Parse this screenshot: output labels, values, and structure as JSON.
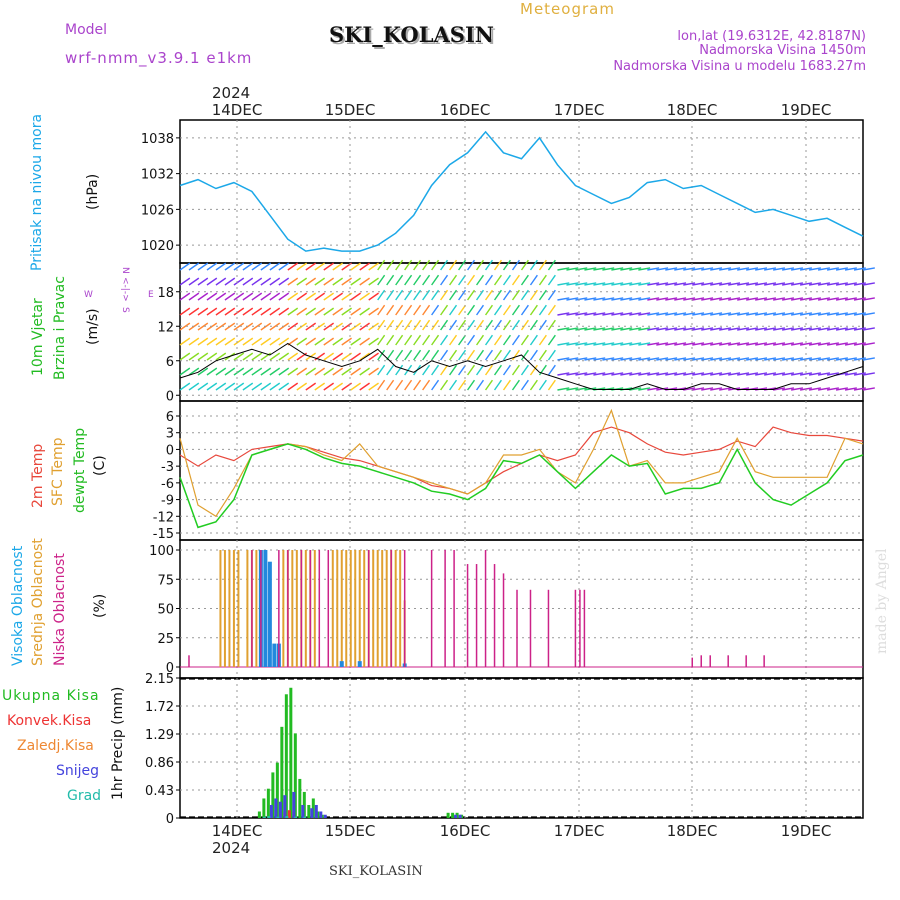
{
  "header": {
    "model_label": "Model",
    "model_name": "wrf-nmm_v3.9.1  e1km",
    "meteogram_label": "Meteogram",
    "station_name": "SKI_KOLASIN",
    "lonlat": "lon,lat (19.6312E, 42.8187N)",
    "elevation": "Nadmorska Visina 1450m",
    "model_elevation": "Nadmorska Visina u modelu 1683.27m",
    "footer_station": "SKI_KOLASIN",
    "watermark": "made by Angel"
  },
  "time_axis": {
    "year": "2024",
    "day_labels": [
      "14DEC",
      "15DEC",
      "16DEC",
      "17DEC",
      "18DEC",
      "19DEC"
    ]
  },
  "colors": {
    "pressure": "#1ca8e8",
    "temp2m": "#e8483c",
    "sfc_temp": "#e0a030",
    "dewpt": "#22cc22",
    "high_cloud": "#2288dd",
    "mid_cloud": "#e0a030",
    "low_cloud": "#cc2288",
    "total_precip": "#22bb22",
    "conv_precip": "#ee3333",
    "frozen_precip": "#ee8833",
    "snow": "#4444dd",
    "hail": "#22bbaa",
    "wind_speed": "#000000"
  },
  "panels": {
    "pressure": {
      "labels": [
        "Pritisak na nivou mora"
      ],
      "unit": "(hPa)",
      "ticks": [
        "1038",
        "1032",
        "1026",
        "1020"
      ]
    },
    "wind": {
      "labels": [
        "10m Vjetar",
        "Brzina i Pravac"
      ],
      "unit": "(m/s)",
      "ticks": [
        "18",
        "12",
        "6",
        "0"
      ],
      "compass": {
        "north": "N",
        "west": "W",
        "east": "E",
        "south": "S"
      }
    },
    "temperature": {
      "labels": [
        "2m Temp",
        "SFC Temp",
        "dewpt Temp"
      ],
      "unit": "(C)",
      "ticks": [
        "6",
        "3",
        "0",
        "-3",
        "-6",
        "-9",
        "-12",
        "-15"
      ]
    },
    "cloud": {
      "labels": [
        "Visoka Oblacnost",
        "Srednja Oblacnost",
        "Niska Oblacnost"
      ],
      "unit": "(%)",
      "ticks": [
        "100",
        "75",
        "50",
        "25",
        "0"
      ]
    },
    "precip": {
      "labels": [
        "Ukupna Kisa",
        "Konvek.Kisa",
        "Zaledj.Kisa",
        "Snijeg",
        "Grad"
      ],
      "unit": "1hr Precip (mm)",
      "ticks": [
        "2.15",
        "1.72",
        "1.29",
        "0.86",
        "0.43",
        "0"
      ]
    }
  },
  "chart_data": [
    {
      "type": "line",
      "title": "Pritisak na nivou mora",
      "ylabel": "(hPa)",
      "x_unit": "hours from 13DEC 12UTC",
      "ylim": [
        1017,
        1041
      ],
      "series": [
        {
          "name": "Pritisak na nivou mora",
          "x": [
            0,
            4,
            8,
            12,
            16,
            20,
            24,
            28,
            32,
            36,
            40,
            44,
            48,
            52,
            56,
            60,
            64,
            68,
            72,
            76,
            80,
            84,
            88,
            92,
            96,
            100,
            104,
            108,
            112,
            116,
            120,
            124,
            128,
            132,
            136,
            140,
            144,
            148,
            152
          ],
          "y": [
            1030,
            1031,
            1029.5,
            1030.5,
            1029,
            1025,
            1021,
            1019,
            1019.5,
            1019,
            1019,
            1020,
            1022,
            1025,
            1030,
            1033.5,
            1035.5,
            1039,
            1035.5,
            1034.5,
            1038,
            1033.5,
            1030,
            1028.5,
            1027,
            1028,
            1030.5,
            1031,
            1029.5,
            1030,
            1028.5,
            1027,
            1025.5,
            1026,
            1025,
            1024,
            1024.5,
            1023,
            1021.5
          ]
        }
      ]
    },
    {
      "type": "line",
      "title": "10m Vjetar Brzina i Pravac",
      "ylabel": "(m/s)",
      "x_unit": "hours from 13DEC 12UTC",
      "ylim": [
        -1,
        23
      ],
      "series": [
        {
          "name": "10m Vjetar",
          "x": [
            0,
            4,
            8,
            12,
            16,
            20,
            24,
            28,
            32,
            36,
            40,
            44,
            48,
            52,
            56,
            60,
            64,
            68,
            72,
            76,
            80,
            84,
            88,
            92,
            96,
            100,
            104,
            108,
            112,
            116,
            120,
            124,
            128,
            132,
            136,
            140,
            144,
            148,
            152
          ],
          "y": [
            3,
            4,
            6,
            7,
            8,
            7,
            9,
            7,
            6,
            5,
            6,
            8,
            5,
            4,
            6,
            5,
            6,
            5,
            6,
            7,
            4,
            3,
            2,
            1,
            1,
            1,
            2,
            1,
            1,
            2,
            2,
            1,
            1,
            1,
            2,
            2,
            3,
            4,
            5
          ]
        }
      ]
    },
    {
      "type": "line",
      "title": "Temperatura",
      "ylabel": "(C)",
      "x_unit": "hours from 13DEC 12UTC",
      "ylim": [
        -16,
        7.5
      ],
      "series": [
        {
          "name": "2m Temp",
          "x": [
            0,
            4,
            8,
            12,
            16,
            20,
            24,
            28,
            32,
            36,
            40,
            44,
            48,
            52,
            56,
            60,
            64,
            68,
            72,
            76,
            80,
            84,
            88,
            92,
            96,
            100,
            104,
            108,
            112,
            116,
            120,
            124,
            128,
            132,
            136,
            140,
            144,
            148,
            152
          ],
          "y": [
            -1,
            -3,
            -1,
            -2,
            0,
            0.5,
            1,
            0.5,
            -0.5,
            -1.5,
            -2,
            -3,
            -4,
            -5,
            -6.5,
            -7,
            -8,
            -6,
            -4,
            -2.5,
            -1,
            -2,
            -1,
            3,
            4,
            3,
            1,
            -0.5,
            -1,
            -0.5,
            0,
            1.5,
            0.5,
            4,
            3,
            2.5,
            2.5,
            2,
            1.5
          ]
        },
        {
          "name": "SFC Temp",
          "x": [
            0,
            4,
            8,
            12,
            16,
            20,
            24,
            28,
            32,
            36,
            40,
            44,
            48,
            52,
            56,
            60,
            64,
            68,
            72,
            76,
            80,
            84,
            88,
            92,
            96,
            100,
            104,
            108,
            112,
            116,
            120,
            124,
            128,
            132,
            136,
            140,
            144,
            148,
            152
          ],
          "y": [
            2,
            -10,
            -12,
            -7,
            -1,
            0,
            1,
            0.5,
            -1,
            -2,
            1,
            -3,
            -4,
            -5,
            -6,
            -7,
            -8,
            -6,
            -1,
            -1,
            0,
            -4,
            -6,
            0,
            7,
            -3,
            -2,
            -6,
            -6,
            -5,
            -4,
            2,
            -4,
            -5,
            -5,
            -5,
            -5,
            2,
            1
          ]
        },
        {
          "name": "dewpt Temp",
          "x": [
            0,
            4,
            8,
            12,
            16,
            20,
            24,
            28,
            32,
            36,
            40,
            44,
            48,
            52,
            56,
            60,
            64,
            68,
            72,
            76,
            80,
            84,
            88,
            92,
            96,
            100,
            104,
            108,
            112,
            116,
            120,
            124,
            128,
            132,
            136,
            140,
            144,
            148,
            152
          ],
          "y": [
            -5,
            -14,
            -13,
            -9,
            -1,
            0,
            1,
            0,
            -1.5,
            -2.5,
            -3,
            -4,
            -5,
            -6,
            -7.5,
            -8,
            -9,
            -7,
            -2,
            -2.5,
            -1,
            -4,
            -7,
            -4,
            -1,
            -3,
            -2.5,
            -8,
            -7,
            -7,
            -6,
            0,
            -6,
            -9,
            -10,
            -8,
            -6,
            -2,
            -1
          ]
        }
      ]
    },
    {
      "type": "bar",
      "title": "Oblacnost",
      "ylabel": "(%)",
      "x_unit": "hours from 13DEC 12UTC",
      "ylim": [
        0,
        100
      ],
      "series": [
        {
          "name": "Visoka Oblacnost",
          "x": [
            18,
            19,
            20,
            21,
            22,
            36,
            40,
            50
          ],
          "y": [
            100,
            100,
            90,
            20,
            20,
            5,
            5,
            3
          ]
        },
        {
          "name": "Srednja Oblacnost",
          "x": [
            9,
            10,
            11,
            12,
            13,
            15,
            16,
            17,
            18,
            23,
            24,
            25,
            26,
            27,
            28,
            29,
            30,
            34,
            35,
            36,
            37,
            38,
            39,
            40,
            41,
            42,
            43,
            44,
            45,
            46,
            47,
            48,
            49,
            50
          ],
          "y": [
            100,
            100,
            100,
            100,
            100,
            100,
            100,
            100,
            100,
            100,
            100,
            100,
            100,
            100,
            100,
            100,
            100,
            100,
            100,
            100,
            100,
            100,
            100,
            100,
            100,
            100,
            100,
            100,
            100,
            100,
            100,
            100,
            100,
            57
          ]
        },
        {
          "name": "Niska Oblacnost",
          "x": [
            2,
            16,
            18,
            22,
            24,
            27,
            29,
            31,
            33,
            42,
            47,
            50,
            56,
            59,
            61,
            64,
            66,
            68,
            70,
            72,
            75,
            78,
            82,
            88,
            89,
            90,
            114,
            116,
            118,
            122,
            126,
            130
          ],
          "y": [
            10,
            100,
            100,
            100,
            100,
            100,
            100,
            100,
            100,
            100,
            100,
            100,
            100,
            100,
            100,
            88,
            88,
            100,
            88,
            80,
            66,
            66,
            66,
            66,
            66,
            66,
            8,
            10,
            10,
            10,
            10,
            10
          ]
        }
      ]
    },
    {
      "type": "bar",
      "title": "1hr Precip",
      "ylabel": "(mm)",
      "x_unit": "hours from 13DEC 12UTC",
      "ylim": [
        0,
        2.15
      ],
      "series": [
        {
          "name": "Ukupna Kisa",
          "x": [
            18,
            19,
            20,
            21,
            22,
            23,
            24,
            25,
            26,
            27,
            28,
            29,
            30,
            31,
            32,
            60,
            61,
            62,
            63
          ],
          "y": [
            0.1,
            0.3,
            0.45,
            0.7,
            0.85,
            1.4,
            1.9,
            2.0,
            1.3,
            0.6,
            0.4,
            0.2,
            0.3,
            0.1,
            0.05,
            0.08,
            0.08,
            0.08,
            0.05
          ]
        },
        {
          "name": "Konvek.Kisa",
          "x": [
            23,
            24,
            25
          ],
          "y": [
            0.1,
            0.12,
            0.1
          ]
        },
        {
          "name": "Snijeg",
          "x": [
            20,
            21,
            22,
            23,
            25,
            27,
            29,
            30,
            31,
            32,
            61,
            62
          ],
          "y": [
            0.2,
            0.3,
            0.25,
            0.35,
            0.4,
            0.2,
            0.15,
            0.2,
            0.1,
            0.05,
            0.05,
            0.05
          ]
        },
        {
          "name": "Grad",
          "x": [
            19,
            20,
            22,
            24,
            26,
            28
          ],
          "y": [
            0.02,
            0.03,
            0.02,
            0.03,
            0.02,
            0.02
          ]
        }
      ]
    }
  ]
}
